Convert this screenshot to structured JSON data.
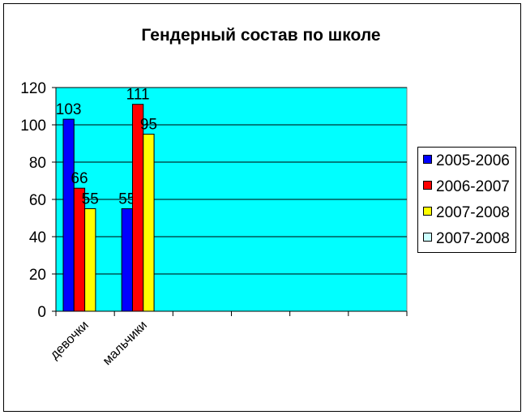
{
  "chart_data": {
    "type": "bar",
    "title": "Гендерный состав по школе",
    "xlabel": "",
    "ylabel": "",
    "categories": [
      "девочки",
      "мальчики",
      "",
      "",
      "",
      ""
    ],
    "series": [
      {
        "name": "2005-2006",
        "color": "#0000FF",
        "values": [
          103,
          55,
          null,
          null,
          null,
          null
        ]
      },
      {
        "name": "2006-2007",
        "color": "#FF0000",
        "values": [
          66,
          111,
          null,
          null,
          null,
          null
        ]
      },
      {
        "name": "2007-2008",
        "color": "#FFFF00",
        "values": [
          55,
          95,
          null,
          null,
          null,
          null
        ]
      },
      {
        "name": "2007-2008",
        "color": "#CCFFFF",
        "values": [
          null,
          null,
          null,
          null,
          null,
          null
        ]
      }
    ],
    "ylim": [
      0,
      120
    ],
    "yticks": [
      0,
      20,
      40,
      60,
      80,
      100,
      120
    ],
    "grid": true,
    "data_labels": true,
    "legend": "right",
    "plot_background": "#00FFFF"
  }
}
